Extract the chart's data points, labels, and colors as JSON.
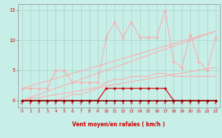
{
  "xlabel": "Vent moyen/en rafales ( km/h )",
  "x_ticks": [
    0,
    1,
    2,
    3,
    4,
    5,
    6,
    7,
    8,
    9,
    10,
    11,
    12,
    13,
    14,
    15,
    16,
    17,
    18,
    19,
    20,
    21,
    22,
    23
  ],
  "ylim": [
    -1.2,
    16
  ],
  "yticks": [
    0,
    5,
    10,
    15
  ],
  "bg_color": "#c8eee8",
  "grid_color": "#99ccbb",
  "trend1_x": [
    0,
    23
  ],
  "trend1_y": [
    0.0,
    5.5
  ],
  "trend1_color": "#ffaaaa",
  "trend1_lw": 0.8,
  "trend2_x": [
    0,
    23
  ],
  "trend2_y": [
    2.0,
    11.5
  ],
  "trend2_color": "#ffaaaa",
  "trend2_lw": 0.8,
  "trend3_x": [
    0,
    23
  ],
  "trend3_y": [
    0.0,
    11.5
  ],
  "trend3_color": "#ffaaaa",
  "trend3_lw": 0.8,
  "spiky_x": [
    0,
    1,
    2,
    3,
    4,
    5,
    6,
    7,
    8,
    9,
    10,
    11,
    12,
    13,
    14,
    15,
    16,
    17,
    18,
    19,
    20,
    21,
    22,
    23
  ],
  "spiky_y": [
    2.0,
    2.0,
    2.0,
    2.0,
    5.0,
    5.0,
    3.0,
    3.0,
    3.0,
    3.0,
    10.5,
    13.0,
    10.5,
    13.0,
    10.5,
    10.5,
    10.5,
    15.0,
    6.5,
    5.5,
    11.0,
    6.5,
    5.0,
    10.5
  ],
  "spiky_color": "#ffaaaa",
  "spiky_lw": 0.8,
  "spiky_marker": "^",
  "spiky_ms": 2.0,
  "band_upper_x": [
    0,
    1,
    2,
    3,
    4,
    5,
    6,
    7,
    8,
    9,
    10,
    11,
    12,
    13,
    14,
    15,
    16,
    17,
    18,
    19,
    20,
    21,
    22,
    23
  ],
  "band_upper_y": [
    0,
    0,
    0,
    0,
    0,
    0.5,
    1.0,
    1.0,
    1.5,
    2.0,
    3.0,
    3.5,
    3.5,
    4.0,
    4.0,
    4.0,
    4.5,
    4.5,
    4.0,
    4.0,
    4.0,
    4.0,
    4.0,
    4.0
  ],
  "band_upper_color": "#ffaaaa",
  "band_upper_lw": 0.8,
  "dark1_x": [
    0,
    1,
    2,
    3,
    4,
    5,
    6,
    7,
    8,
    9,
    10,
    11,
    12,
    13,
    14,
    15,
    16,
    17,
    18,
    19,
    20,
    21,
    22,
    23
  ],
  "dark1_y": [
    0,
    0,
    0,
    0,
    0,
    0,
    0,
    0,
    0,
    0,
    2.0,
    2.0,
    2.0,
    2.0,
    2.0,
    2.0,
    2.0,
    2.0,
    0,
    0,
    0,
    0,
    0,
    0
  ],
  "dark1_color": "#cc0000",
  "dark1_lw": 0.9,
  "dark1_marker": "D",
  "dark1_ms": 1.5,
  "dark2_x": [
    0,
    1,
    2,
    3,
    4,
    5,
    6,
    7,
    8,
    9,
    10,
    11,
    12,
    13,
    14,
    15,
    16,
    17,
    18,
    19,
    20,
    21,
    22,
    23
  ],
  "dark2_y": [
    0,
    0,
    0,
    0,
    0,
    0,
    0,
    0,
    0,
    0,
    0,
    0,
    0,
    0,
    0,
    0,
    0,
    0,
    0,
    0,
    0,
    0,
    0,
    0
  ],
  "dark2_color": "#880000",
  "dark2_lw": 1.2,
  "dark2_marker": "s",
  "dark2_ms": 1.5,
  "arrow_color": "#cc2222",
  "arrow_angles_deg": [
    45,
    45,
    45,
    45,
    45,
    45,
    45,
    45,
    135,
    135,
    90,
    90,
    90,
    90,
    90,
    90,
    135,
    135,
    135,
    135,
    135,
    135,
    135,
    135
  ]
}
